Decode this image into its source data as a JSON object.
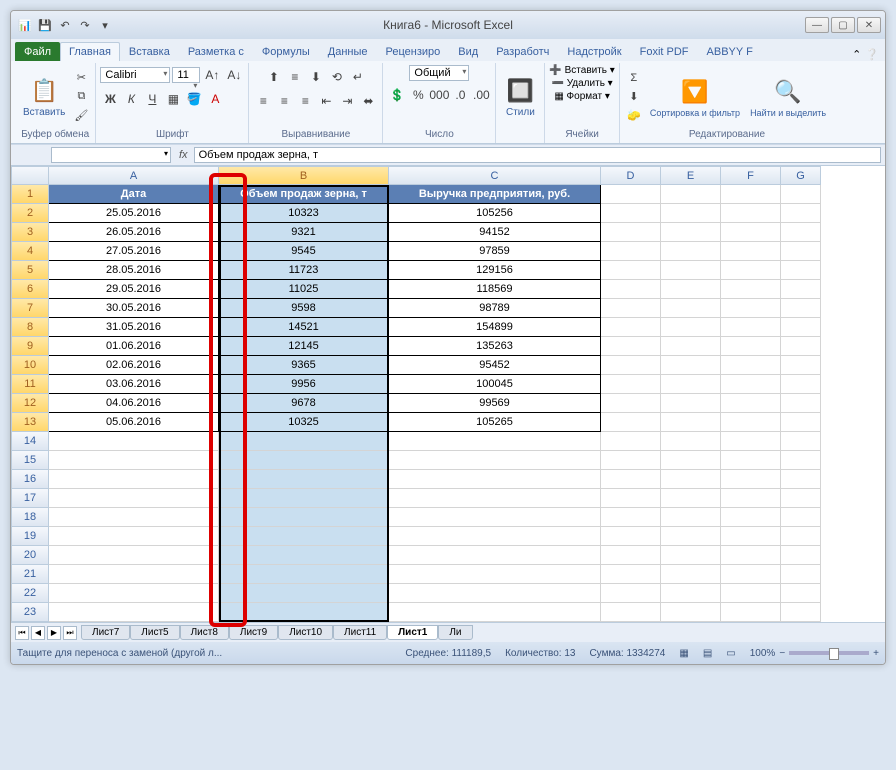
{
  "title": "Книга6 - Microsoft Excel",
  "tabs": {
    "file": "Файл",
    "home": "Главная",
    "insert": "Вставка",
    "layout": "Разметка с",
    "formulas": "Формулы",
    "data": "Данные",
    "review": "Рецензиро",
    "view": "Вид",
    "developer": "Разработч",
    "addins": "Надстройк",
    "foxit": "Foxit PDF",
    "abbyy": "ABBYY F"
  },
  "ribbon": {
    "paste": "Вставить",
    "clipboard": "Буфер обмена",
    "font_name": "Calibri",
    "font_size": "11",
    "font_group": "Шрифт",
    "align_group": "Выравнивание",
    "number_format": "Общий",
    "number_group": "Число",
    "styles": "Стили",
    "insert_btn": "Вставить",
    "delete_btn": "Удалить",
    "format_btn": "Формат",
    "cells_group": "Ячейки",
    "sort": "Сортировка и фильтр",
    "find": "Найти и выделить",
    "editing_group": "Редактирование"
  },
  "formula_bar": "Объем продаж зерна, т",
  "columns": [
    "A",
    "B",
    "C",
    "D",
    "E",
    "F",
    "G"
  ],
  "headers": {
    "a": "Дата",
    "b": "Объем продаж зерна, т",
    "c": "Выручка предприятия, руб."
  },
  "rows": [
    {
      "a": "25.05.2016",
      "b": "10323",
      "c": "105256"
    },
    {
      "a": "26.05.2016",
      "b": "9321",
      "c": "94152"
    },
    {
      "a": "27.05.2016",
      "b": "9545",
      "c": "97859"
    },
    {
      "a": "28.05.2016",
      "b": "11723",
      "c": "129156"
    },
    {
      "a": "29.05.2016",
      "b": "11025",
      "c": "118569"
    },
    {
      "a": "30.05.2016",
      "b": "9598",
      "c": "98789"
    },
    {
      "a": "31.05.2016",
      "b": "14521",
      "c": "154899"
    },
    {
      "a": "01.06.2016",
      "b": "12145",
      "c": "135263"
    },
    {
      "a": "02.06.2016",
      "b": "9365",
      "c": "95452"
    },
    {
      "a": "03.06.2016",
      "b": "9956",
      "c": "100045"
    },
    {
      "a": "04.06.2016",
      "b": "9678",
      "c": "99569"
    },
    {
      "a": "05.06.2016",
      "b": "10325",
      "c": "105265"
    }
  ],
  "empty_rows": 10,
  "sheets": [
    "Лист7",
    "Лист5",
    "Лист8",
    "Лист9",
    "Лист10",
    "Лист11",
    "Лист1",
    "Ли"
  ],
  "active_sheet": "Лист1",
  "status": {
    "msg": "Тащите для переноса с заменой (другой л...",
    "avg_lbl": "Среднее:",
    "avg": "111189,5",
    "cnt_lbl": "Количество:",
    "cnt": "13",
    "sum_lbl": "Сумма:",
    "sum": "1334274",
    "zoom": "100%"
  },
  "colors": {
    "header_bg": "#5b7fb4",
    "sel_bg": "#c9dff0",
    "accent_red": "#d00"
  }
}
